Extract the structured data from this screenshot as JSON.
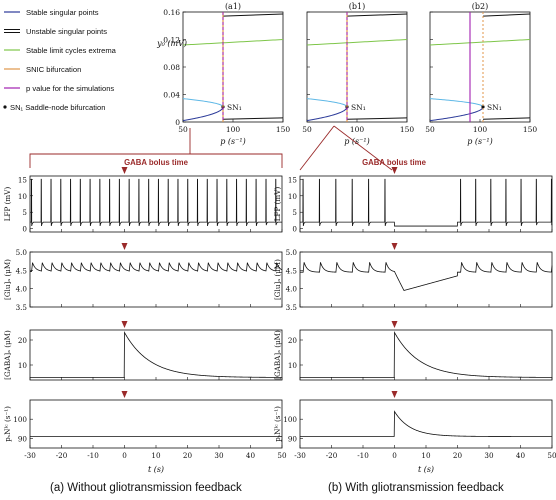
{
  "captions": {
    "a": "(a) Without gliotransmission feedback",
    "b": "(b) With gliotransmission feedback"
  },
  "colors": {
    "stable": "#2b3a99",
    "unstable": "#111111",
    "limit": "#7fc64a",
    "snic": "#e0964a",
    "pvalue": "#a11fb0",
    "accent": "#9a2a2a",
    "upper_branch": "#5fb8e6"
  },
  "legend": [
    {
      "label": "Stable singular points",
      "style": "stable"
    },
    {
      "label": "Unstable singular points",
      "style": "unstable"
    },
    {
      "label": "Stable limit cycles extrema",
      "style": "limit"
    },
    {
      "label": "SNIC bifurcation",
      "style": "snic"
    },
    {
      "label": "p value for the simulations",
      "style": "pvalue"
    },
    {
      "label": "SN₁ Saddle-node bifurcation",
      "style": "marker"
    }
  ],
  "bifurcation": {
    "panels": [
      {
        "id": "a1",
        "title": "(a1)",
        "p_sim": 90,
        "snic": 90,
        "sn_label": "SN₁"
      },
      {
        "id": "b1",
        "title": "(b1)",
        "p_sim": 90,
        "snic": 90,
        "sn_label": "SN₁"
      },
      {
        "id": "b2",
        "title": "(b2)",
        "p_sim": 90,
        "snic": 103,
        "sn_label": "SN₁"
      }
    ],
    "xlabel": "p (s⁻¹)",
    "ylabel": "y₀ (mV)",
    "xlim": [
      50,
      150
    ],
    "ylim": [
      0,
      0.16
    ],
    "xticks": [
      "50",
      "100",
      "150"
    ],
    "yticks": [
      "0",
      "0.04",
      "0.08",
      "0.12",
      "0.16"
    ]
  },
  "chart_data": {
    "type": "line",
    "title": "",
    "xlabel": "t (s)",
    "xlim": [
      -30,
      50
    ],
    "xticks": [
      "-30",
      "-20",
      "-10",
      "0",
      "10",
      "20",
      "30",
      "40",
      "50"
    ],
    "annotation": "GABA bolus time",
    "bolus_time": 0,
    "rows": [
      {
        "id": "lfp",
        "ylabel": "LFP (mV)",
        "ylim": [
          -1,
          16
        ],
        "yticks": [
          "0",
          "5",
          "10",
          "15"
        ]
      },
      {
        "id": "glu",
        "ylabel": "[Glu]ₐ (μM)",
        "ylim": [
          3.5,
          5
        ],
        "yticks": [
          "3.5",
          "4.0",
          "4.5",
          "5.0"
        ]
      },
      {
        "id": "gaba",
        "ylabel": "[GABA]ₐ (μM)",
        "ylim": [
          4,
          24
        ],
        "yticks": [
          "10",
          "20"
        ]
      },
      {
        "id": "psnic",
        "ylabel": "pₛNᴵᶜ (s⁻¹)",
        "ylim": [
          85,
          110
        ],
        "yticks": [
          "90",
          "100"
        ]
      }
    ],
    "series": [
      {
        "column": "a",
        "row": "lfp",
        "baseline": 2,
        "spike_peak": 15,
        "spike_times": [
          -29.5,
          -26.4,
          -23.3,
          -20.2,
          -17.1,
          -14,
          -10.9,
          -7.8,
          -4.7,
          -1.6,
          1.5,
          4.6,
          7.7,
          10.8,
          13.9,
          17,
          20.1,
          23.2,
          26.3,
          29.4,
          32.5,
          35.6,
          38.7,
          41.8,
          44.9,
          48
        ]
      },
      {
        "column": "a",
        "row": "glu",
        "baseline": 4.47,
        "peak": 4.71,
        "event_times": [
          -29.5,
          -26.4,
          -23.3,
          -20.2,
          -17.1,
          -14,
          -10.9,
          -7.8,
          -4.7,
          -1.6,
          1.5,
          4.6,
          7.7,
          10.8,
          13.9,
          17,
          20.1,
          23.2,
          26.3,
          29.4,
          32.5,
          35.6,
          38.7,
          41.8,
          44.9,
          48
        ]
      },
      {
        "column": "a",
        "row": "gaba",
        "baseline": 5,
        "peak": 23,
        "decay_tau": 8
      },
      {
        "column": "a",
        "row": "psnic",
        "value": 91
      },
      {
        "column": "b",
        "row": "lfp",
        "baseline": 2,
        "spike_peak": 15,
        "post_bolus_level": 0.8,
        "spike_times": [
          -29,
          -23.8,
          -18.6,
          -13.4,
          -8.2,
          -3,
          21,
          25.8,
          30.6,
          35.4,
          40.2,
          45,
          49.8
        ]
      },
      {
        "column": "b",
        "row": "glu",
        "baseline": 4.45,
        "peak": 4.72,
        "minimum": 3.95,
        "minimum_time": 3,
        "recovery_time": 20,
        "event_times": [
          -29,
          -23.8,
          -18.6,
          -13.4,
          -8.2,
          -3,
          21,
          25.8,
          30.6,
          35.4,
          40.2,
          45,
          49.8
        ]
      },
      {
        "column": "b",
        "row": "gaba",
        "baseline": 5,
        "peak": 23,
        "decay_tau": 8
      },
      {
        "column": "b",
        "row": "psnic",
        "value": 91,
        "peak": 104,
        "decay_tau": 5
      }
    ]
  }
}
